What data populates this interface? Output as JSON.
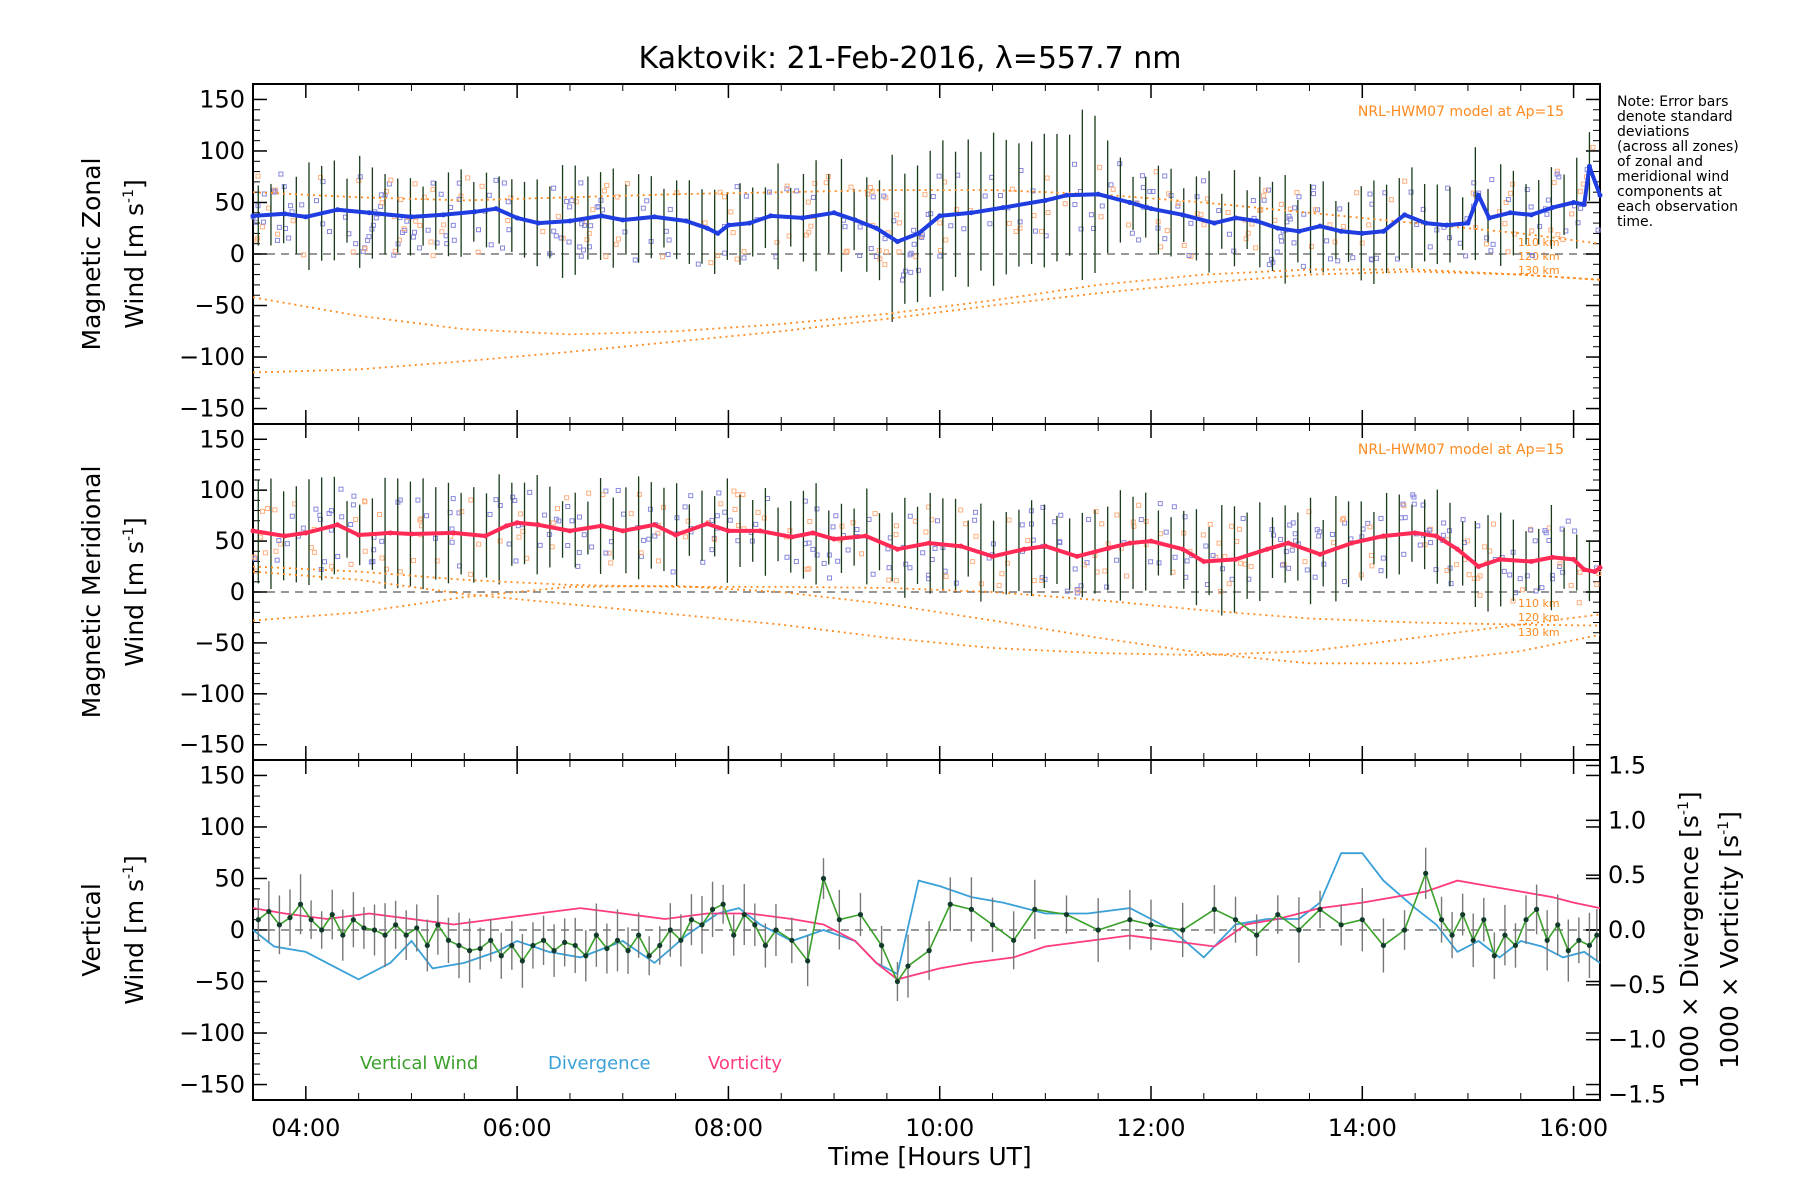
{
  "chart_data": {
    "type": "line",
    "title": "Kaktovik: 21-Feb-2016, λ=557.7 nm",
    "xlabel": "Time [Hours UT]",
    "xlim": [
      3.5,
      16.25
    ],
    "x_ticks": [
      "04:00",
      "06:00",
      "08:00",
      "10:00",
      "12:00",
      "14:00",
      "16:00"
    ],
    "x_tick_values": [
      4,
      6,
      8,
      10,
      12,
      14,
      16
    ],
    "note_lines": [
      "Note: Error bars",
      "denote standard",
      "deviations",
      "(across all zones)",
      "of zonal and",
      "meridional wind",
      "components at",
      "each observation",
      "time."
    ],
    "colors": {
      "zonal": "#1f3de0",
      "meridional": "#ff2a55",
      "vertical": "#3aa02a",
      "divergence": "#3aa0d8",
      "vorticity": "#ff3a80",
      "model": "#ff8a1e",
      "error_bars": "#1a3a1a",
      "scatter_blue": "#8888dd",
      "scatter_orange": "#ffb080"
    },
    "panels": [
      {
        "ylabel_line1": "Magnetic Zonal",
        "ylabel_line2_prefix": "Wind [m s",
        "ylabel_sup": "-1",
        "ylabel_close": "]",
        "ylim": [
          -165,
          165
        ],
        "y_ticks": [
          "150",
          "100",
          "50",
          "0",
          "−50",
          "−100",
          "−150"
        ],
        "y_tick_values": [
          150,
          100,
          50,
          0,
          -50,
          -100,
          -150
        ],
        "model_label": "NRL-HWM07 model at Ap=15",
        "model_altitudes": [
          "110 km",
          "120 km",
          "130 km"
        ],
        "series": [
          {
            "name": "",
            "x": [
              3.5,
              3.8,
              4.0,
              4.3,
              4.6,
              5.0,
              5.3,
              5.6,
              5.8,
              6.0,
              6.2,
              6.5,
              6.8,
              7.0,
              7.3,
              7.6,
              7.8,
              7.9,
              8.0,
              8.2,
              8.4,
              8.7,
              9.0,
              9.2,
              9.4,
              9.6,
              9.8,
              10.0,
              10.3,
              10.6,
              11.0,
              11.2,
              11.5,
              11.8,
              12.0,
              12.3,
              12.6,
              12.8,
              13.0,
              13.2,
              13.4,
              13.6,
              13.8,
              14.0,
              14.2,
              14.4,
              14.6,
              14.8,
              15.0,
              15.1,
              15.2,
              15.4,
              15.6,
              15.8,
              16.0,
              16.1,
              16.15,
              16.25
            ],
            "y": [
              37,
              39,
              36,
              43,
              40,
              36,
              38,
              41,
              44,
              35,
              30,
              32,
              37,
              33,
              36,
              32,
              25,
              20,
              28,
              30,
              37,
              35,
              40,
              33,
              25,
              12,
              20,
              37,
              40,
              45,
              52,
              57,
              58,
              50,
              44,
              38,
              30,
              35,
              32,
              25,
              22,
              27,
              22,
              20,
              22,
              38,
              30,
              28,
              30,
              57,
              35,
              40,
              38,
              45,
              50,
              48,
              85,
              57
            ]
          },
          {
            "name": "",
            "x": [
              3.5,
              4.5,
              5.5,
              6.5,
              7.5,
              8.5,
              9.5,
              10.5,
              11.5,
              12.5,
              13.5,
              14.5,
              15.5,
              16.25
            ],
            "y": [
              60,
              55,
              52,
              55,
              58,
              60,
              62,
              62,
              58,
              50,
              40,
              30,
              20,
              10
            ]
          },
          {
            "name": "",
            "x": [
              3.5,
              4.5,
              5.5,
              6.5,
              7.5,
              8.5,
              9.5,
              10.5,
              11.5,
              12.5,
              13.5,
              14.5,
              15.5,
              16.25
            ],
            "y": [
              -42,
              -60,
              -73,
              -78,
              -75,
              -68,
              -58,
              -45,
              -30,
              -20,
              -15,
              -15,
              -20,
              -25
            ]
          },
          {
            "name": "",
            "x": [
              3.5,
              4.5,
              5.5,
              6.5,
              7.5,
              8.5,
              9.5,
              10.5,
              11.5,
              12.5,
              13.5,
              14.5,
              15.5,
              16.25
            ],
            "y": [
              -115,
              -112,
              -104,
              -95,
              -85,
              -75,
              -63,
              -50,
              -38,
              -28,
              -20,
              -17,
              -20,
              -25
            ]
          }
        ]
      },
      {
        "ylabel_line1": "Magnetic Meridional",
        "ylabel_line2_prefix": "Wind [m s",
        "ylabel_sup": "-1",
        "ylabel_close": "]",
        "ylim": [
          -165,
          165
        ],
        "y_ticks": [
          "150",
          "100",
          "50",
          "0",
          "−50",
          "−100",
          "−150"
        ],
        "y_tick_values": [
          150,
          100,
          50,
          0,
          -50,
          -100,
          -150
        ],
        "model_label": "NRL-HWM07 model at Ap=15",
        "model_altitudes": [
          "110 km",
          "120 km",
          "130 km"
        ],
        "series": [
          {
            "name": "",
            "x": [
              3.5,
              3.8,
              4.0,
              4.3,
              4.5,
              4.8,
              5.0,
              5.4,
              5.7,
              5.9,
              6.0,
              6.2,
              6.5,
              6.8,
              7.0,
              7.3,
              7.5,
              7.8,
              8.0,
              8.3,
              8.6,
              8.8,
              9.0,
              9.3,
              9.6,
              9.9,
              10.2,
              10.5,
              10.8,
              11.0,
              11.3,
              11.6,
              11.8,
              12.0,
              12.3,
              12.5,
              12.8,
              13.1,
              13.3,
              13.6,
              13.9,
              14.2,
              14.5,
              14.7,
              14.9,
              15.1,
              15.3,
              15.6,
              15.8,
              16.0,
              16.1,
              16.2,
              16.25
            ],
            "y": [
              60,
              55,
              58,
              66,
              56,
              58,
              57,
              58,
              55,
              65,
              68,
              66,
              60,
              65,
              60,
              66,
              56,
              67,
              60,
              60,
              54,
              58,
              52,
              55,
              42,
              48,
              45,
              35,
              42,
              45,
              35,
              43,
              48,
              50,
              42,
              30,
              32,
              42,
              48,
              37,
              48,
              55,
              58,
              55,
              42,
              25,
              32,
              30,
              34,
              32,
              22,
              20,
              24
            ]
          },
          {
            "name": "",
            "x": [
              3.5,
              4.5,
              5.5,
              6.5,
              7.5,
              8.5,
              9.5,
              10.5,
              11.5,
              12.5,
              13.5,
              14.5,
              15.5,
              16.25
            ],
            "y": [
              25,
              20,
              12,
              7,
              5,
              5,
              4,
              0,
              -8,
              -18,
              -26,
              -30,
              -32,
              -33
            ]
          },
          {
            "name": "",
            "x": [
              3.5,
              4.5,
              5.5,
              6.5,
              7.5,
              8.5,
              9.5,
              10.5,
              11.5,
              12.5,
              13.5,
              14.5,
              15.5,
              16.25
            ],
            "y": [
              20,
              12,
              -2,
              -12,
              -22,
              -32,
              -45,
              -55,
              -60,
              -62,
              -58,
              -45,
              -32,
              -22
            ]
          },
          {
            "name": "",
            "x": [
              3.5,
              4.5,
              5.5,
              6.5,
              7.5,
              8.5,
              9.5,
              10.5,
              11.5,
              12.5,
              13.5,
              14.5,
              15.5,
              16.25
            ],
            "y": [
              -28,
              -20,
              -5,
              5,
              6,
              0,
              -12,
              -28,
              -45,
              -60,
              -70,
              -70,
              -58,
              -42
            ]
          }
        ]
      },
      {
        "ylabel_line1": "Vertical",
        "ylabel_line2_prefix": "Wind [m s",
        "ylabel_sup": "-1",
        "ylabel_close": "]",
        "ylim": [
          -165,
          165
        ],
        "y_ticks": [
          "150",
          "100",
          "50",
          "0",
          "−50",
          "−100",
          "−150"
        ],
        "y_tick_values": [
          150,
          100,
          50,
          0,
          -50,
          -100,
          -150
        ],
        "right_axis": {
          "ylim": [
            -1.55,
            1.55
          ],
          "ticks": [
            "1.5",
            "1.0",
            "0.5",
            "0.0",
            "−0.5",
            "−1.0",
            "−1.5"
          ],
          "tick_values": [
            1.5,
            1.0,
            0.5,
            0.0,
            -0.5,
            -1.0,
            -1.5
          ],
          "label_div_prefix": "1000 × Divergence [s",
          "label_vor_prefix": "1000 × Vorticity [s",
          "label_sup": "-1",
          "label_close": "]"
        },
        "legend": [
          "Vertical Wind",
          "Divergence",
          "Vorticity"
        ],
        "series": [
          {
            "name": "Vertical Wind",
            "x": [
              3.55,
              3.65,
              3.75,
              3.85,
              3.95,
              4.05,
              4.15,
              4.25,
              4.35,
              4.45,
              4.55,
              4.65,
              4.75,
              4.85,
              4.95,
              5.05,
              5.15,
              5.25,
              5.35,
              5.45,
              5.55,
              5.65,
              5.75,
              5.85,
              5.95,
              6.05,
              6.15,
              6.25,
              6.35,
              6.45,
              6.55,
              6.65,
              6.75,
              6.85,
              6.95,
              7.05,
              7.15,
              7.25,
              7.35,
              7.45,
              7.55,
              7.65,
              7.75,
              7.85,
              7.95,
              8.05,
              8.15,
              8.25,
              8.35,
              8.45,
              8.6,
              8.75,
              8.9,
              9.05,
              9.25,
              9.45,
              9.6,
              9.7,
              9.9,
              10.1,
              10.3,
              10.5,
              10.7,
              10.9,
              11.2,
              11.5,
              11.8,
              12.0,
              12.3,
              12.6,
              12.8,
              13.0,
              13.2,
              13.4,
              13.6,
              13.8,
              14.0,
              14.2,
              14.4,
              14.6,
              14.75,
              14.85,
              14.95,
              15.05,
              15.15,
              15.25,
              15.35,
              15.45,
              15.55,
              15.65,
              15.75,
              15.85,
              15.95,
              16.05,
              16.15,
              16.22
            ],
            "y": [
              10,
              18,
              5,
              12,
              25,
              10,
              0,
              15,
              -5,
              10,
              2,
              0,
              -5,
              5,
              -5,
              2,
              -15,
              5,
              -10,
              -15,
              -20,
              -18,
              -10,
              -25,
              -15,
              -30,
              -15,
              -10,
              -20,
              -12,
              -15,
              -25,
              -5,
              -18,
              -10,
              -20,
              -5,
              -25,
              -15,
              0,
              -10,
              10,
              5,
              20,
              25,
              -5,
              15,
              5,
              -15,
              0,
              -10,
              -30,
              50,
              10,
              15,
              -15,
              -50,
              -35,
              -20,
              25,
              20,
              5,
              -10,
              20,
              15,
              0,
              10,
              5,
              0,
              20,
              10,
              -5,
              15,
              0,
              20,
              5,
              10,
              -15,
              0,
              55,
              10,
              -5,
              15,
              -10,
              10,
              -25,
              -5,
              -15,
              10,
              20,
              -10,
              5,
              -20,
              -10,
              -15,
              -5
            ]
          },
          {
            "name": "Divergence",
            "x": [
              3.5,
              3.7,
              4.0,
              4.3,
              4.5,
              4.8,
              5.0,
              5.2,
              5.5,
              5.8,
              6.0,
              6.3,
              6.6,
              7.0,
              7.3,
              7.6,
              7.9,
              8.1,
              8.3,
              8.6,
              8.9,
              9.2,
              9.4,
              9.6,
              9.8,
              10.0,
              10.3,
              10.6,
              11.0,
              11.4,
              11.8,
              12.2,
              12.5,
              12.8,
              13.1,
              13.4,
              13.6,
              13.8,
              14.0,
              14.2,
              14.5,
              14.7,
              14.9,
              15.1,
              15.3,
              15.5,
              15.7,
              15.9,
              16.1,
              16.25
            ],
            "y": [
              0.0,
              -0.15,
              -0.2,
              -0.35,
              -0.45,
              -0.3,
              -0.1,
              -0.35,
              -0.3,
              -0.2,
              -0.1,
              -0.2,
              -0.25,
              -0.1,
              -0.3,
              -0.05,
              0.15,
              0.2,
              0.05,
              -0.1,
              0.0,
              -0.1,
              -0.3,
              -0.4,
              0.45,
              0.4,
              0.3,
              0.25,
              0.15,
              0.15,
              0.2,
              0.0,
              -0.25,
              0.05,
              0.1,
              0.1,
              0.25,
              0.7,
              0.7,
              0.45,
              0.2,
              0.05,
              -0.2,
              -0.1,
              -0.25,
              -0.1,
              -0.15,
              -0.25,
              -0.2,
              -0.3
            ]
          },
          {
            "name": "Vorticity",
            "x": [
              3.5,
              3.8,
              4.2,
              4.6,
              5.0,
              5.4,
              5.8,
              6.2,
              6.6,
              7.0,
              7.4,
              7.8,
              8.2,
              8.6,
              8.9,
              9.2,
              9.4,
              9.6,
              9.8,
              10.0,
              10.3,
              10.7,
              11.0,
              11.4,
              11.8,
              12.2,
              12.6,
              12.9,
              13.2,
              13.6,
              14.0,
              14.3,
              14.6,
              14.9,
              15.2,
              15.5,
              15.8,
              16.0,
              16.25
            ],
            "y": [
              0.2,
              0.15,
              0.1,
              0.15,
              0.1,
              0.05,
              0.1,
              0.15,
              0.2,
              0.15,
              0.1,
              0.15,
              0.15,
              0.1,
              0.05,
              -0.1,
              -0.3,
              -0.45,
              -0.4,
              -0.35,
              -0.3,
              -0.25,
              -0.15,
              -0.1,
              -0.05,
              -0.1,
              -0.15,
              0.05,
              0.1,
              0.2,
              0.25,
              0.3,
              0.35,
              0.45,
              0.4,
              0.35,
              0.3,
              0.25,
              0.2
            ]
          }
        ]
      }
    ]
  }
}
